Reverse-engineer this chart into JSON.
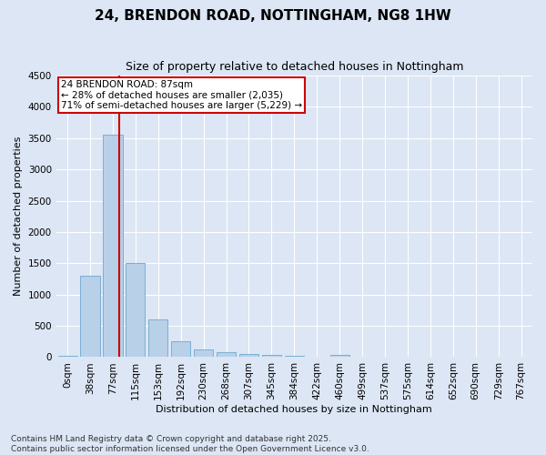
{
  "title": "24, BRENDON ROAD, NOTTINGHAM, NG8 1HW",
  "subtitle": "Size of property relative to detached houses in Nottingham",
  "xlabel": "Distribution of detached houses by size in Nottingham",
  "ylabel": "Number of detached properties",
  "bar_labels": [
    "0sqm",
    "38sqm",
    "77sqm",
    "115sqm",
    "153sqm",
    "192sqm",
    "230sqm",
    "268sqm",
    "307sqm",
    "345sqm",
    "384sqm",
    "422sqm",
    "460sqm",
    "499sqm",
    "537sqm",
    "575sqm",
    "614sqm",
    "652sqm",
    "690sqm",
    "729sqm",
    "767sqm"
  ],
  "bar_values": [
    20,
    1300,
    3550,
    1500,
    600,
    250,
    130,
    80,
    50,
    30,
    20,
    0,
    30,
    0,
    0,
    0,
    0,
    0,
    0,
    0,
    0
  ],
  "bar_color": "#b8d0e8",
  "bar_edge_color": "#7aafd4",
  "ylim": [
    0,
    4500
  ],
  "yticks": [
    0,
    500,
    1000,
    1500,
    2000,
    2500,
    3000,
    3500,
    4000,
    4500
  ],
  "vline_x": 2.28,
  "vline_color": "#cc0000",
  "annotation_box_text": "24 BRENDON ROAD: 87sqm\n← 28% of detached houses are smaller (2,035)\n71% of semi-detached houses are larger (5,229) →",
  "annotation_box_color": "#cc0000",
  "background_color": "#dce6f5",
  "grid_color": "#ffffff",
  "footer_line1": "Contains HM Land Registry data © Crown copyright and database right 2025.",
  "footer_line2": "Contains public sector information licensed under the Open Government Licence v3.0.",
  "title_fontsize": 11,
  "subtitle_fontsize": 9,
  "axis_label_fontsize": 8,
  "tick_fontsize": 7.5,
  "annotation_fontsize": 7.5,
  "footer_fontsize": 6.5
}
